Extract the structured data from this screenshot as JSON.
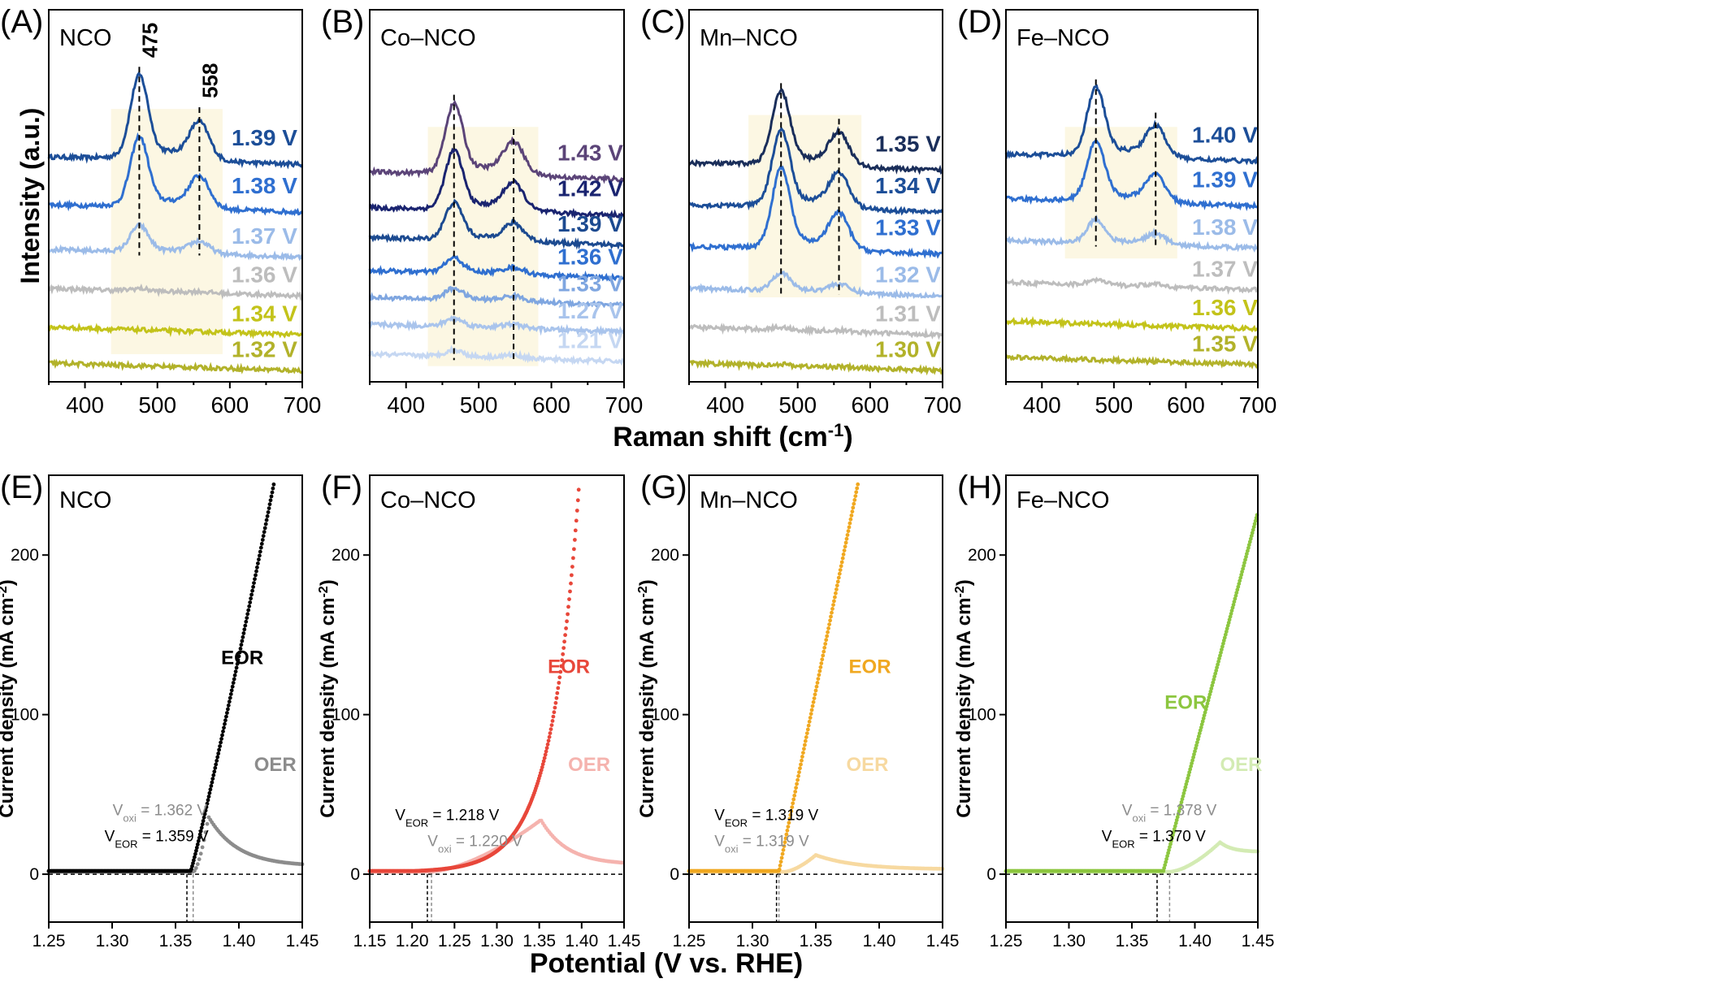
{
  "raman": {
    "ylabel": "Intensity (a.u.)",
    "xlabel_main": "Raman shift (cm",
    "xlabel_sup": "-1",
    "xlabel_end": ")",
    "xticks": [
      400,
      500,
      600,
      700
    ],
    "xlim": [
      350,
      700
    ]
  },
  "lsv": {
    "ylabel": "Current density (mA cm",
    "ylabel_sup": "-2",
    "ylabel_end": ")",
    "xlabel": "Potential (V vs. RHE)",
    "ylim": [
      -30,
      250
    ],
    "yticks": [
      0,
      100,
      200
    ]
  },
  "chart_data": [
    {
      "type": "line",
      "panel": "(A)",
      "sample": "NCO",
      "xlim": [
        350,
        700
      ],
      "peaks": [
        475,
        558
      ],
      "peak_labels": [
        "475",
        "558"
      ],
      "series": [
        {
          "name": "1.39 V",
          "color": "#1c4e98",
          "base": 0.72,
          "amp": 1.0
        },
        {
          "name": "1.38 V",
          "color": "#2f6fd0",
          "base": 0.56,
          "amp": 0.84
        },
        {
          "name": "1.37 V",
          "color": "#9bbbe8",
          "base": 0.41,
          "amp": 0.32
        },
        {
          "name": "1.36 V",
          "color": "#bdbdbd",
          "base": 0.28,
          "amp": 0.03
        },
        {
          "name": "1.34 V",
          "color": "#c3c31a",
          "base": 0.15,
          "amp": 0.0
        },
        {
          "name": "1.32 V",
          "color": "#b2b22a",
          "base": 0.03,
          "amp": 0.0
        }
      ]
    },
    {
      "type": "line",
      "panel": "(B)",
      "sample": "Co–NCO",
      "xlim": [
        350,
        700
      ],
      "peaks": [
        466,
        548
      ],
      "peak_labels": [],
      "series": [
        {
          "name": "1.43 V",
          "color": "#5b4478",
          "base": 0.67,
          "amp": 0.85
        },
        {
          "name": "1.42 V",
          "color": "#1a2470",
          "base": 0.55,
          "amp": 0.72
        },
        {
          "name": "1.39 V",
          "color": "#1c4a90",
          "base": 0.45,
          "amp": 0.45
        },
        {
          "name": "1.36 V",
          "color": "#2f6fd0",
          "base": 0.34,
          "amp": 0.18
        },
        {
          "name": "1.33 V",
          "color": "#7fa6e0",
          "base": 0.25,
          "amp": 0.14
        },
        {
          "name": "1.27 V",
          "color": "#a9c4ec",
          "base": 0.16,
          "amp": 0.1
        },
        {
          "name": "1.21 V",
          "color": "#c5d7f2",
          "base": 0.06,
          "amp": 0.08
        }
      ]
    },
    {
      "type": "line",
      "panel": "(C)",
      "sample": "Mn–NCO",
      "xlim": [
        350,
        700
      ],
      "peaks": [
        477,
        557
      ],
      "peak_labels": [],
      "series": [
        {
          "name": "1.35 V",
          "color": "#1a2e5a",
          "base": 0.7,
          "amp": 0.88
        },
        {
          "name": "1.34 V",
          "color": "#1c4e98",
          "base": 0.56,
          "amp": 0.92
        },
        {
          "name": "1.33 V",
          "color": "#2f6fd0",
          "base": 0.42,
          "amp": 0.96
        },
        {
          "name": "1.32 V",
          "color": "#9bbbe8",
          "base": 0.28,
          "amp": 0.22
        },
        {
          "name": "1.31 V",
          "color": "#bdbdbd",
          "base": 0.15,
          "amp": 0.03
        },
        {
          "name": "1.30 V",
          "color": "#b2b22a",
          "base": 0.03,
          "amp": 0.02
        }
      ]
    },
    {
      "type": "line",
      "panel": "(D)",
      "sample": "Fe–NCO",
      "xlim": [
        350,
        700
      ],
      "peaks": [
        475,
        558
      ],
      "peak_labels": [],
      "series": [
        {
          "name": "1.40 V",
          "color": "#1c4e98",
          "base": 0.73,
          "amp": 0.82
        },
        {
          "name": "1.39 V",
          "color": "#2f6fd0",
          "base": 0.58,
          "amp": 0.72
        },
        {
          "name": "1.38 V",
          "color": "#9bbbe8",
          "base": 0.44,
          "amp": 0.28
        },
        {
          "name": "1.37 V",
          "color": "#bdbdbd",
          "base": 0.3,
          "amp": 0.06
        },
        {
          "name": "1.36 V",
          "color": "#c3c31a",
          "base": 0.17,
          "amp": 0.0
        },
        {
          "name": "1.35 V",
          "color": "#b2b22a",
          "base": 0.05,
          "amp": 0.0
        }
      ]
    },
    {
      "type": "line",
      "panel": "(E)",
      "sample": "NCO",
      "xlim": [
        1.25,
        1.45
      ],
      "xticks": [
        "1.25",
        "1.30",
        "1.35",
        "1.40",
        "1.45"
      ],
      "color": "#000000",
      "oer_color": "#8c8c8c",
      "eor_label": "EOR",
      "oer_label": "OER",
      "v_eor_value": 1.359,
      "v_oxi_value": 1.362,
      "v_eor_text": "= 1.359 V",
      "v_oxi_text": "= 1.362 V",
      "v_oxi_first": true,
      "eor": {
        "onset": 1.362,
        "slope": 4600,
        "power": 1.08
      },
      "oer": {
        "onset": 1.364,
        "peak_x": 1.376,
        "peak_y": 36,
        "end_y": 5
      }
    },
    {
      "type": "line",
      "panel": "(F)",
      "sample": "Co–NCO",
      "xlim": [
        1.15,
        1.45
      ],
      "xticks": [
        "1.15",
        "1.20",
        "1.25",
        "1.30",
        "1.35",
        "1.40",
        "1.45"
      ],
      "color": "#e8473a",
      "oer_color": "#f5b3ae",
      "eor_label": "EOR",
      "oer_label": "OER",
      "v_eor_value": 1.218,
      "v_oxi_value": 1.22,
      "v_eor_text": "= 1.218 V",
      "v_oxi_text": "= 1.220 V",
      "v_oxi_first": false,
      "eor": {
        "onset": 1.22,
        "slope": 13,
        "power": 1.0,
        "exp": true
      },
      "oer": {
        "onset": 1.22,
        "peak_x": 1.352,
        "peak_y": 34,
        "end_y": 6
      }
    },
    {
      "type": "line",
      "panel": "(G)",
      "sample": "Mn–NCO",
      "xlim": [
        1.25,
        1.45
      ],
      "xticks": [
        "1.25",
        "1.30",
        "1.35",
        "1.40",
        "1.45"
      ],
      "color": "#f0a820",
      "oer_color": "#f7d9a0",
      "eor_label": "EOR",
      "oer_label": "OER",
      "v_eor_value": 1.319,
      "v_oxi_value": 1.319,
      "v_eor_text": "= 1.319 V",
      "v_oxi_text": "= 1.319 V",
      "v_oxi_first": false,
      "eor": {
        "onset": 1.321,
        "slope": 3900,
        "power": 1.0,
        "end_x": 1.385
      },
      "oer": {
        "onset": 1.325,
        "peak_x": 1.35,
        "peak_y": 12,
        "end_y": 3
      }
    },
    {
      "type": "line",
      "panel": "(H)",
      "sample": "Fe–NCO",
      "xlim": [
        1.25,
        1.45
      ],
      "xticks": [
        "1.25",
        "1.30",
        "1.35",
        "1.40",
        "1.45"
      ],
      "color": "#8cc63f",
      "oer_color": "#d3ebb3",
      "eor_label": "EOR",
      "oer_label": "OER",
      "v_eor_value": 1.37,
      "v_oxi_value": 1.378,
      "v_eor_text": "= 1.370 V",
      "v_oxi_text": "= 1.378 V",
      "v_oxi_first": true,
      "eor": {
        "onset": 1.375,
        "slope": 3000,
        "power": 1.0
      },
      "oer": {
        "onset": 1.38,
        "peak_x": 1.42,
        "peak_y": 20,
        "end_y": 14
      }
    }
  ]
}
